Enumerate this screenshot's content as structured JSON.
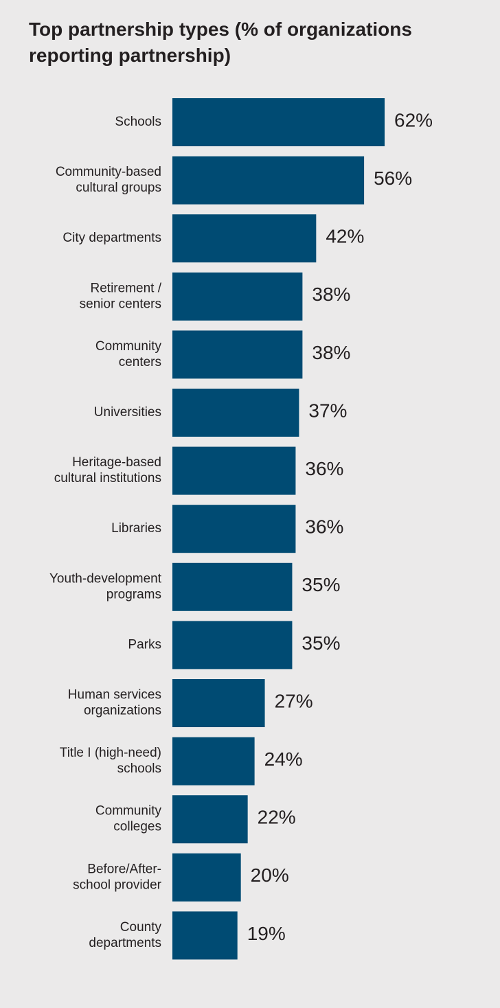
{
  "chart_data": {
    "type": "bar",
    "orientation": "horizontal",
    "title": "Top partnership types (% of organizations reporting partnership)",
    "categories": [
      "Schools",
      "Community-based\ncultural groups",
      "City departments",
      "Retirement /\nsenior centers",
      "Community\ncenters",
      "Universities",
      "Heritage-based\ncultural institutions",
      "Libraries",
      "Youth-development\nprograms",
      "Parks",
      "Human services\norganizations",
      "Title I (high-need)\nschools",
      "Community\ncolleges",
      "Before/After-\nschool provider",
      "County\ndepartments"
    ],
    "values": [
      62,
      56,
      42,
      38,
      38,
      37,
      36,
      36,
      35,
      35,
      27,
      24,
      22,
      20,
      19
    ],
    "value_labels": [
      "62%",
      "56%",
      "42%",
      "38%",
      "38%",
      "37%",
      "36%",
      "36%",
      "35%",
      "35%",
      "27%",
      "24%",
      "22%",
      "20%",
      "19%"
    ],
    "unit": "%",
    "xlim": [
      0,
      62
    ],
    "grid": false,
    "legend": "none",
    "bar_color": "#004b73",
    "background_color": "#ebeaea",
    "text_color": "#231f20"
  }
}
